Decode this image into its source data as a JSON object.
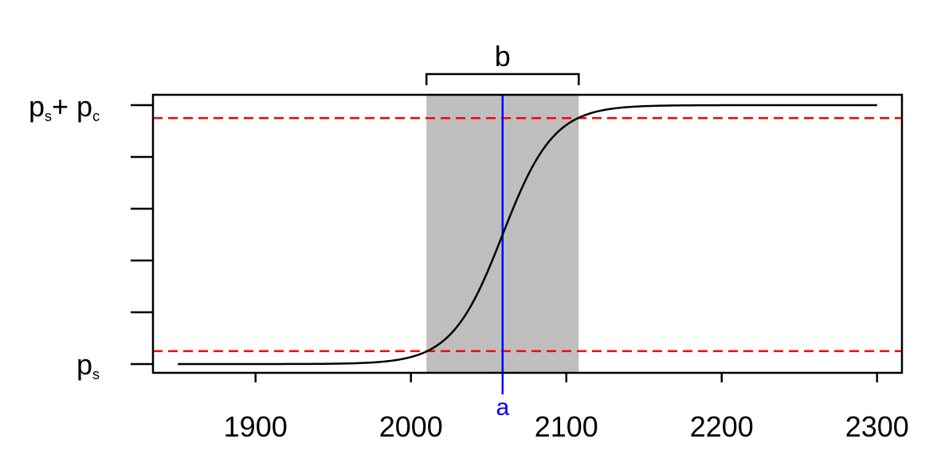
{
  "chart_data": {
    "type": "line",
    "title": "",
    "xlabel": "",
    "ylabel": "",
    "xlim": [
      1834,
      2316
    ],
    "ylim": [
      0,
      1
    ],
    "x_ticks": [
      1900,
      2000,
      2100,
      2200,
      2300
    ],
    "y_tick_count": 6,
    "y_tick_labels": {
      "bottom": {
        "main": "p",
        "sub": "s"
      },
      "top": {
        "main1": "p",
        "sub1": "s",
        "plus": "+ p",
        "sub2": "c"
      }
    },
    "series": [
      {
        "curve": "logistic",
        "x_start": 1850,
        "x_end": 2300,
        "midpoint": 2059,
        "k": 0.0607,
        "color": "#000000"
      }
    ],
    "shaded_interval": {
      "x": [
        2010,
        2108
      ],
      "color": "#bebebe"
    },
    "reference_lines": {
      "horizontal": [
        {
          "y": 0.05,
          "color": "#ff0000",
          "style": "dashed"
        },
        {
          "y": 0.95,
          "color": "#ff0000",
          "style": "dashed"
        }
      ],
      "vertical": [
        {
          "x": 2059,
          "color": "#0000ff",
          "label": "a"
        }
      ]
    },
    "bracket": {
      "x": [
        2010,
        2108
      ],
      "label": "b"
    },
    "grid": false,
    "legend": "none"
  }
}
